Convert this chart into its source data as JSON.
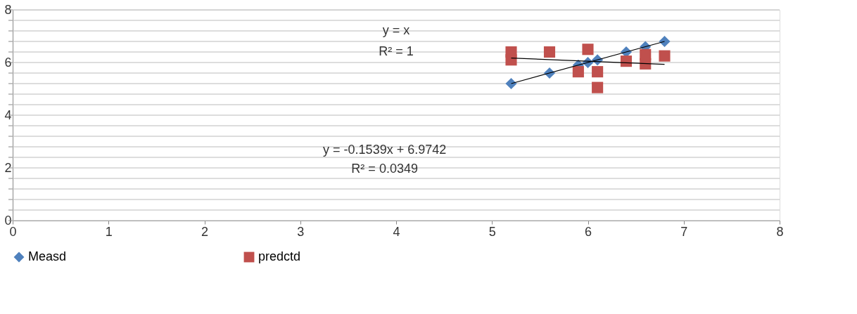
{
  "chart_data": {
    "type": "scatter",
    "legend": "bottom",
    "grid": "y",
    "xlim": [
      0,
      8
    ],
    "xticks": [
      0,
      1,
      2,
      3,
      4,
      5,
      6,
      7,
      8
    ],
    "ylim": [
      0,
      8
    ],
    "yticks": [
      0,
      {
        "value": 0.4,
        "label": null
      },
      {
        "value": 0.8,
        "label": null
      },
      {
        "value": 1.2,
        "label": null
      },
      {
        "value": 1.6,
        "label": null
      },
      2,
      {
        "value": 2.4,
        "label": null
      },
      {
        "value": 2.8,
        "label": null
      },
      {
        "value": 3.2,
        "label": null
      },
      {
        "value": 3.6,
        "label": null
      },
      4,
      {
        "value": 4.4,
        "label": null
      },
      {
        "value": 4.8,
        "label": null
      },
      {
        "value": 5.2,
        "label": null
      },
      {
        "value": 5.6,
        "label": null
      },
      6,
      {
        "value": 6.4,
        "label": null
      },
      {
        "value": 6.8,
        "label": null
      },
      {
        "value": 7.2,
        "label": null
      },
      {
        "value": 7.6,
        "label": null
      },
      8
    ],
    "annotations": [
      "y = x",
      "R² = 1",
      "y = -0.1539x + 6.9742",
      "R² = 0.0349"
    ],
    "series": [
      {
        "name": "Measd",
        "color": "#4f81bd",
        "marker": "diamond",
        "x": [
          5.2,
          5.6,
          5.9,
          6.0,
          6.1,
          6.4,
          6.6,
          6.8
        ],
        "values": [
          5.2,
          5.6,
          5.9,
          6.0,
          6.1,
          6.4,
          6.6,
          6.8
        ]
      },
      {
        "name": "predctd",
        "color": "#c0504d",
        "marker": "square",
        "x": [
          5.2,
          5.2,
          5.6,
          5.9,
          6.0,
          6.1,
          6.1,
          6.4,
          6.6,
          6.6,
          6.8
        ],
        "values": [
          6.4,
          6.1,
          6.4,
          5.65,
          6.5,
          5.65,
          5.05,
          6.05,
          6.3,
          5.95,
          6.25
        ]
      },
      {
        "type": "line",
        "color": "#000000",
        "marker": "none",
        "x": [
          5.2,
          6.8
        ],
        "values": [
          5.2,
          6.8
        ]
      },
      {
        "type": "line",
        "color": "#000000",
        "marker": "none",
        "x": [
          5.2,
          6.8
        ],
        "values": [
          6.17,
          5.93
        ]
      }
    ]
  }
}
